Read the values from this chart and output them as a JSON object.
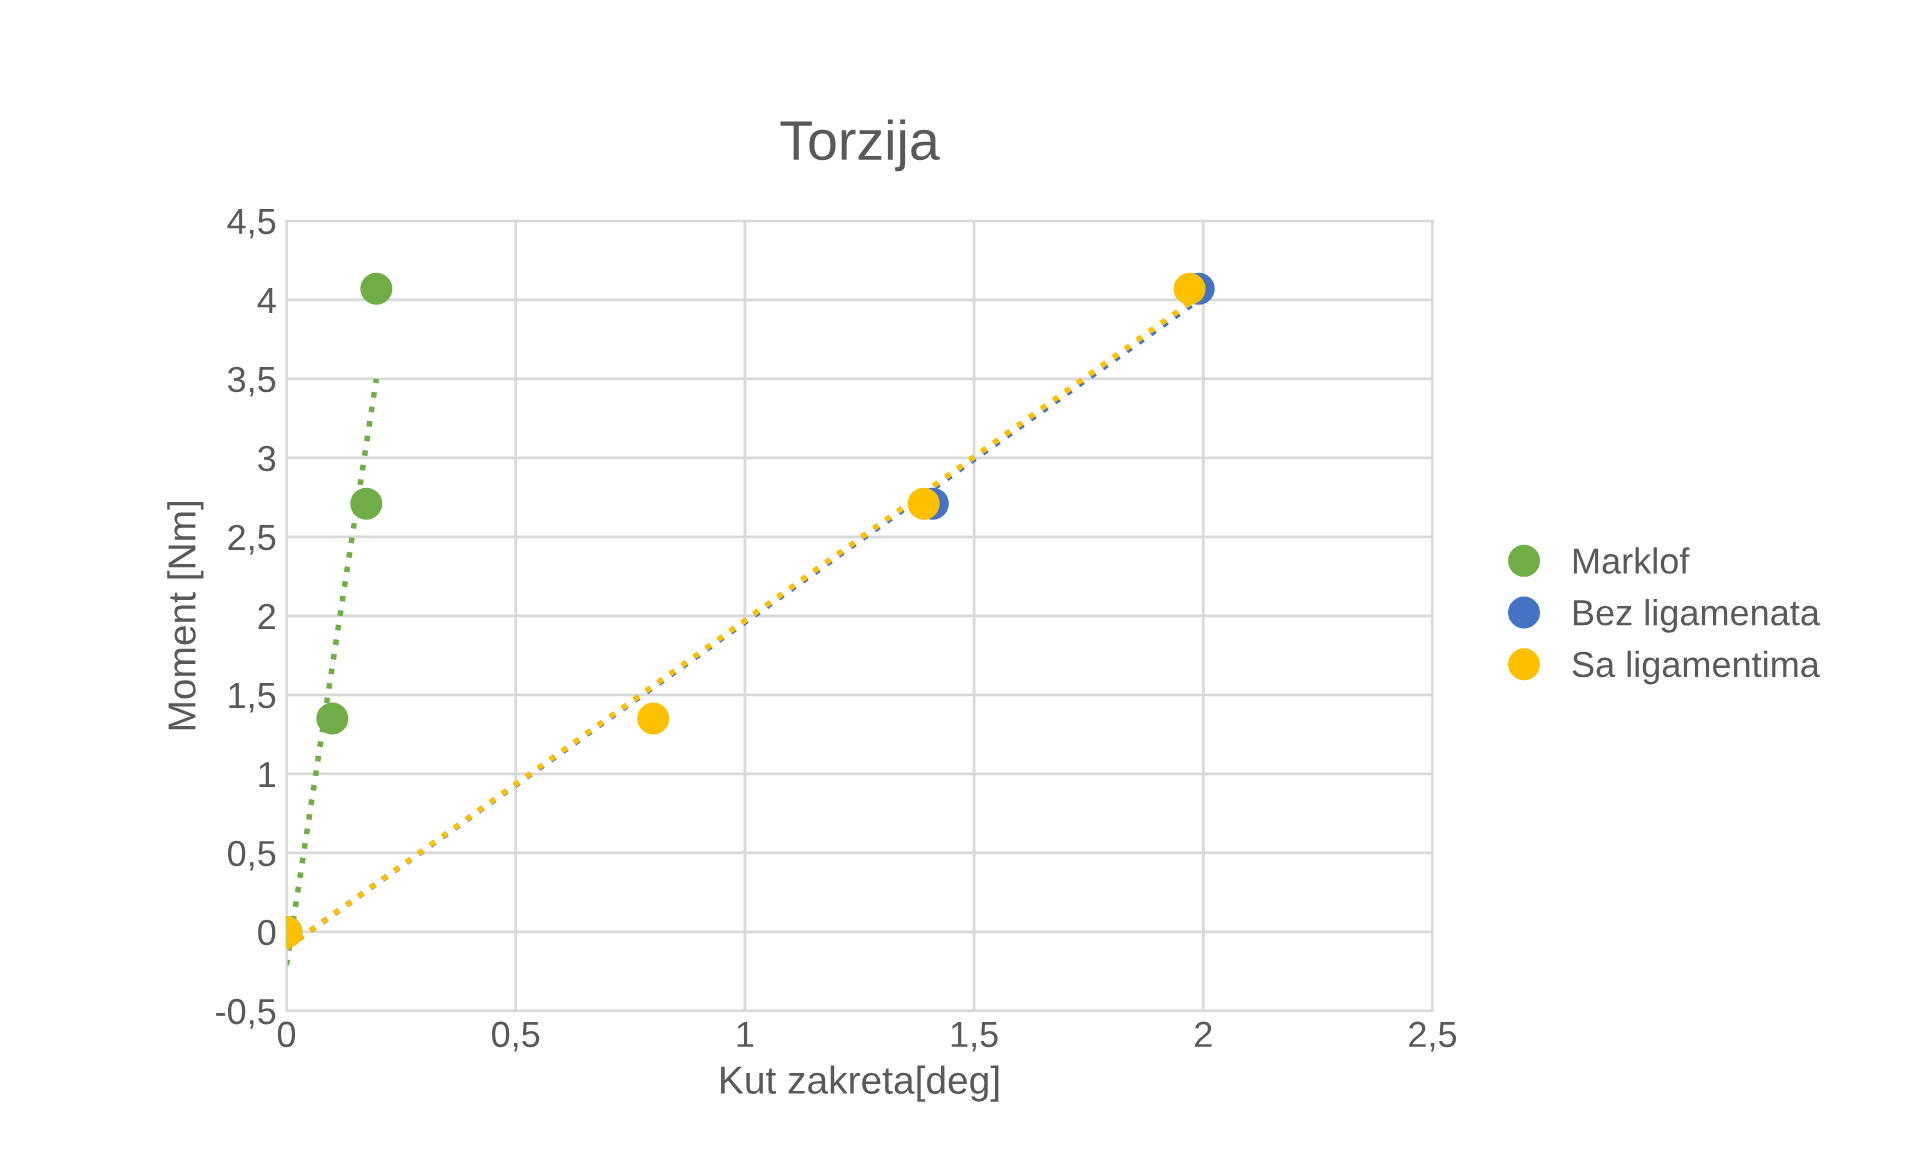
{
  "chart_data": {
    "type": "scatter",
    "title": "Torzija",
    "xlabel": "Kut zakreta[deg]",
    "ylabel": "Moment [Nm]",
    "xlim": [
      0,
      2.5
    ],
    "ylim": [
      -0.5,
      4.5
    ],
    "xticks": [
      0,
      {
        "value": 0.5,
        "label": "0,5"
      },
      1,
      {
        "value": 1.5,
        "label": "1,5"
      },
      2,
      {
        "value": 2.5,
        "label": "2,5"
      }
    ],
    "yticks": [
      {
        "value": -0.5,
        "label": "-0,5"
      },
      0,
      {
        "value": 0.5,
        "label": "0,5"
      },
      1,
      {
        "value": 1.5,
        "label": "1,5"
      },
      2,
      {
        "value": 2.5,
        "label": "2,5"
      },
      3,
      {
        "value": 3.5,
        "label": "3,5"
      },
      4,
      {
        "value": 4.5,
        "label": "4,5"
      }
    ],
    "grid": true,
    "legend": "right",
    "marker": "circle",
    "series": [
      {
        "type": "line",
        "marker": "none",
        "line_style": "dotted",
        "color": "#70ad47",
        "x": [
          0,
          0.196
        ],
        "values": [
          -0.21,
          3.5
        ]
      },
      {
        "type": "line",
        "marker": "none",
        "line_style": "dotted",
        "color": "#4472c4",
        "x": [
          0,
          1.99
        ],
        "values": [
          -0.1,
          4.0
        ]
      },
      {
        "type": "line",
        "marker": "none",
        "line_style": "dotted",
        "color": "#ffc000",
        "x": [
          0,
          1.97
        ],
        "values": [
          -0.1,
          3.98
        ]
      },
      {
        "name": "Marklof",
        "color": "#70ad47",
        "x": [
          0,
          0.1,
          0.174,
          0.196
        ],
        "values": [
          0,
          1.35,
          2.71,
          4.07
        ]
      },
      {
        "name": "Bez ligamenata",
        "color": "#4472c4",
        "x": [
          1.41,
          1.99
        ],
        "values": [
          2.71,
          4.07
        ]
      },
      {
        "name": "Sa ligamentima",
        "color": "#ffc000",
        "x": [
          0,
          0.8,
          1.39,
          1.97
        ],
        "values": [
          0,
          1.35,
          2.71,
          4.07
        ]
      }
    ]
  }
}
